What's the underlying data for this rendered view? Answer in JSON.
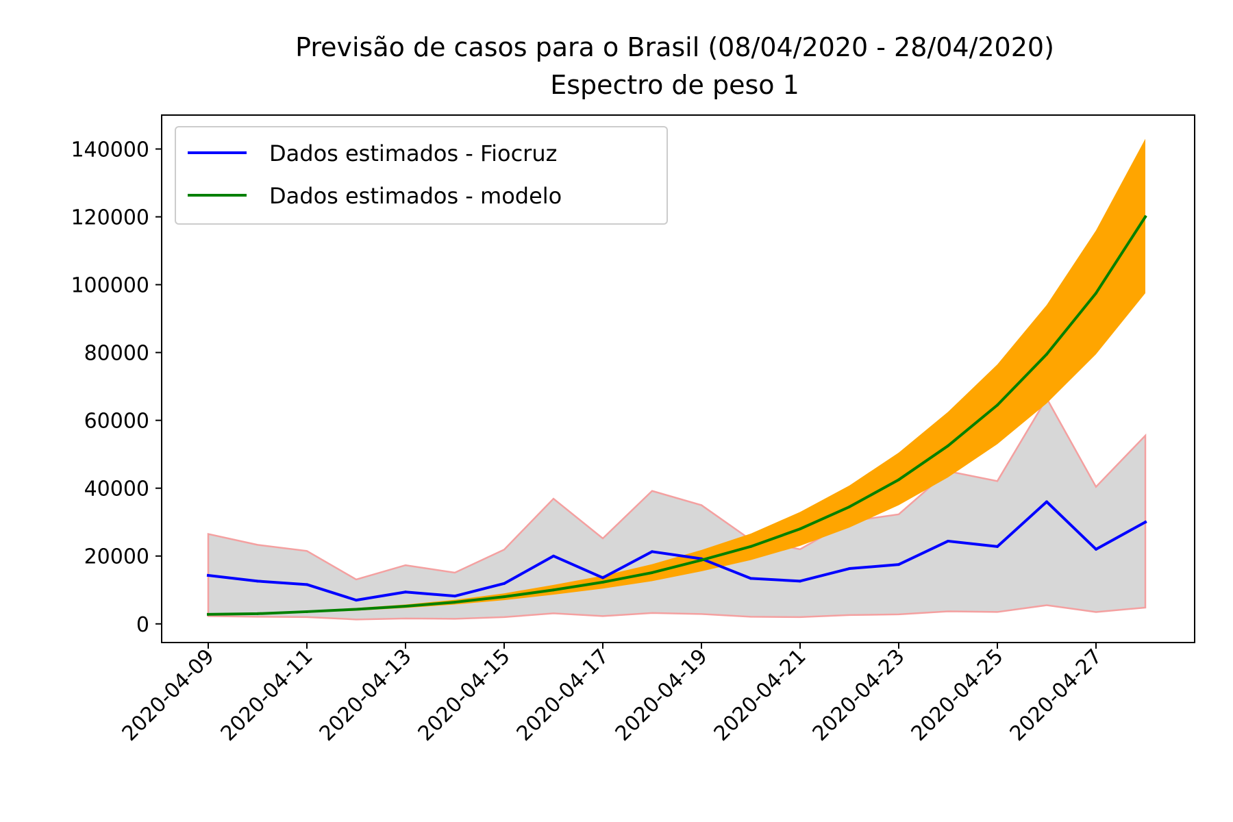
{
  "chart_data": {
    "type": "line",
    "title": "Previsão de casos para o Brasil (08/04/2020 - 28/04/2020)",
    "subtitle": "Espectro de peso 1",
    "xlabel": "",
    "ylabel": "",
    "x": [
      "2020-04-09",
      "2020-04-10",
      "2020-04-11",
      "2020-04-12",
      "2020-04-13",
      "2020-04-14",
      "2020-04-15",
      "2020-04-16",
      "2020-04-17",
      "2020-04-18",
      "2020-04-19",
      "2020-04-20",
      "2020-04-21",
      "2020-04-22",
      "2020-04-23",
      "2020-04-24",
      "2020-04-25",
      "2020-04-26",
      "2020-04-27",
      "2020-04-28"
    ],
    "x_tick_labels": [
      "2020-04-09",
      "2020-04-11",
      "2020-04-13",
      "2020-04-15",
      "2020-04-17",
      "2020-04-19",
      "2020-04-21",
      "2020-04-23",
      "2020-04-25",
      "2020-04-27"
    ],
    "ylim": [
      -5500,
      150000
    ],
    "y_ticks": [
      0,
      20000,
      40000,
      60000,
      80000,
      100000,
      120000,
      140000
    ],
    "y_tick_labels": [
      "0",
      "20000",
      "40000",
      "60000",
      "80000",
      "100000",
      "120000",
      "140000"
    ],
    "series": [
      {
        "name": "Dados estimados - Fiocruz",
        "color": "#0000ff",
        "values": [
          14300,
          12600,
          11600,
          7000,
          9400,
          8200,
          11900,
          20000,
          13600,
          21300,
          19200,
          13400,
          12600,
          16300,
          17500,
          24400,
          22800,
          36000,
          22000,
          30000
        ]
      },
      {
        "name": "Dados estimados - modelo",
        "color": "#008000",
        "values": [
          2800,
          3000,
          3600,
          4300,
          5200,
          6400,
          8000,
          10000,
          12300,
          15100,
          18800,
          22800,
          28000,
          34500,
          42500,
          52500,
          64500,
          79500,
          97500,
          120000
        ]
      }
    ],
    "bands": [
      {
        "color": "#d7d7d7",
        "edge_color": "#f4a0a0",
        "lower": [
          2300,
          2100,
          2000,
          1300,
          1600,
          1500,
          2000,
          3100,
          2300,
          3200,
          2900,
          2100,
          2000,
          2600,
          2800,
          3700,
          3500,
          5500,
          3500,
          4800
        ],
        "upper": [
          26500,
          23300,
          21500,
          13100,
          17300,
          15100,
          21900,
          36900,
          25200,
          39200,
          35000,
          24800,
          22000,
          30200,
          32300,
          45000,
          42100,
          66500,
          40400,
          55500
        ]
      },
      {
        "color": "#ffa500",
        "lower": [
          2700,
          2800,
          3300,
          3900,
          4700,
          5700,
          7000,
          8600,
          10400,
          12600,
          15500,
          18800,
          23000,
          28400,
          35000,
          43200,
          53000,
          65000,
          79500,
          97500
        ],
        "upper": [
          2900,
          3200,
          3900,
          4700,
          5700,
          7100,
          9000,
          11500,
          14200,
          17600,
          21800,
          26600,
          33000,
          40800,
          50500,
          62500,
          76500,
          94000,
          116000,
          143000
        ]
      }
    ],
    "legend": {
      "placement": "top-left",
      "entries": [
        "Dados estimados - Fiocruz",
        "Dados estimados - modelo"
      ]
    }
  }
}
